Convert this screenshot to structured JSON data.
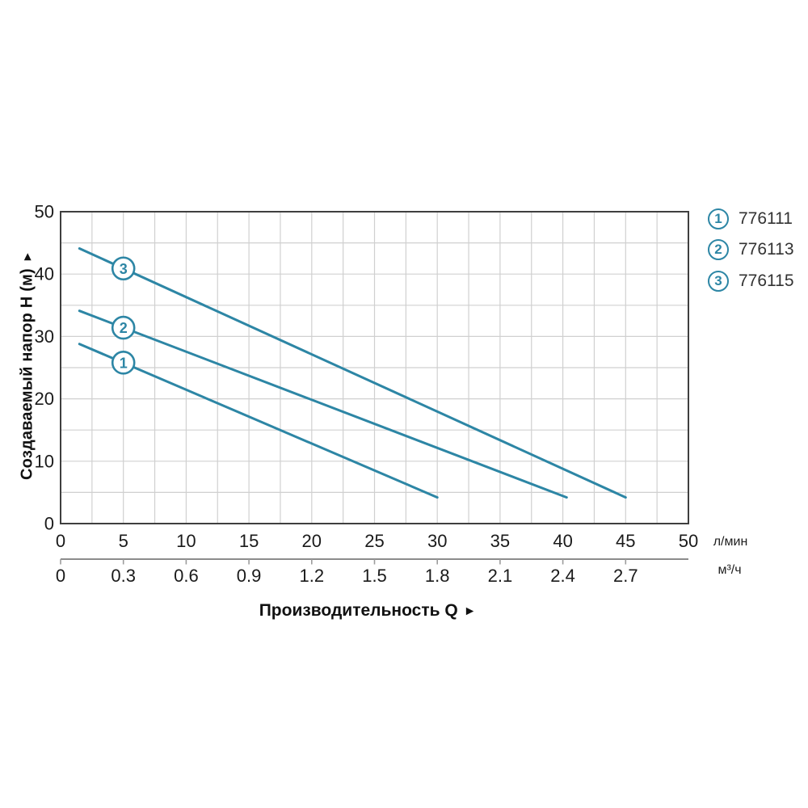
{
  "labels": {
    "y_title": "Создаваемый напор H (м)",
    "x_title": "Производительность Q",
    "axis_arrow": "►"
  },
  "chart_data": {
    "type": "line",
    "title": "",
    "xlabel": "Производительность Q",
    "ylabel": "Создаваемый напор H (м)",
    "grid": true,
    "x_axis_primary": {
      "unit": "л/мин",
      "range": [
        0,
        50
      ],
      "ticks": [
        0,
        5,
        10,
        15,
        20,
        25,
        30,
        35,
        40,
        45,
        50
      ],
      "minor_grid_step": 2.5
    },
    "x_axis_secondary": {
      "unit": "м³/ч",
      "range": [
        0,
        3
      ],
      "ticks": [
        "0",
        "0.3",
        "0.6",
        "0.9",
        "1.2",
        "1.5",
        "1.8",
        "2.1",
        "2.4",
        "2.7"
      ]
    },
    "y_axis": {
      "range": [
        0,
        50
      ],
      "ticks": [
        0,
        10,
        20,
        30,
        40,
        50
      ],
      "minor_grid_step": 5
    },
    "series": [
      {
        "marker": "1",
        "name": "776111",
        "points_lpm_m": [
          [
            1.5,
            28.8
          ],
          [
            30,
            4.2
          ]
        ],
        "marker_at": [
          5,
          25.8
        ]
      },
      {
        "marker": "2",
        "name": "776113",
        "points_lpm_m": [
          [
            1.5,
            34.1
          ],
          [
            40.3,
            4.2
          ]
        ],
        "marker_at": [
          5,
          31.4
        ]
      },
      {
        "marker": "3",
        "name": "776115",
        "points_lpm_m": [
          [
            1.5,
            44.1
          ],
          [
            45,
            4.2
          ]
        ],
        "marker_at": [
          5,
          40.9
        ]
      }
    ],
    "legend": [
      {
        "marker": "1",
        "label": "776111"
      },
      {
        "marker": "2",
        "label": "776113"
      },
      {
        "marker": "3",
        "label": "776115"
      }
    ],
    "legend_position": "top-right-outside",
    "colors": {
      "line": "#2d86a5",
      "grid": "#d0d0d0",
      "border": "#3f3f3f",
      "secondary_axis": "#8c8c8c",
      "secondary_tick": "#9c9c9c",
      "text": "#1a1a1a"
    }
  }
}
